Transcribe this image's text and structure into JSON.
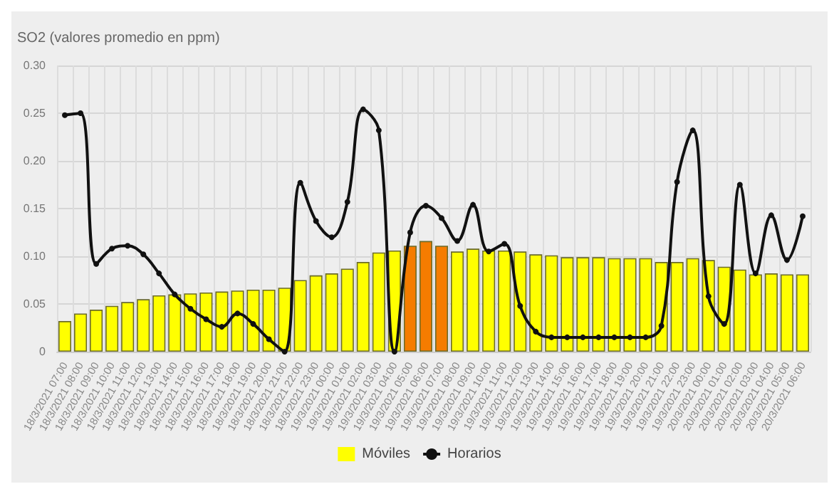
{
  "chart_data": {
    "type": "bar",
    "ylabel": "SO2 (valores promedio en ppm)",
    "categories": [
      "18/3/2021 07:00",
      "18/3/2021 08:00",
      "18/3/2021 09:00",
      "18/3/2021 10:00",
      "18/3/2021 11:00",
      "18/3/2021 12:00",
      "18/3/2021 13:00",
      "18/3/2021 14:00",
      "18/3/2021 15:00",
      "18/3/2021 16:00",
      "18/3/2021 17:00",
      "18/3/2021 18:00",
      "18/3/2021 19:00",
      "18/3/2021 20:00",
      "18/3/2021 21:00",
      "18/3/2021 22:00",
      "18/3/2021 23:00",
      "19/3/2021 00:00",
      "19/3/2021 01:00",
      "19/3/2021 02:00",
      "19/3/2021 03:00",
      "19/3/2021 04:00",
      "19/3/2021 05:00",
      "19/3/2021 06:00",
      "19/3/2021 07:00",
      "19/3/2021 08:00",
      "19/3/2021 09:00",
      "19/3/2021 10:00",
      "19/3/2021 11:00",
      "19/3/2021 12:00",
      "19/3/2021 13:00",
      "19/3/2021 14:00",
      "19/3/2021 15:00",
      "19/3/2021 16:00",
      "19/3/2021 17:00",
      "19/3/2021 18:00",
      "19/3/2021 19:00",
      "19/3/2021 20:00",
      "19/3/2021 21:00",
      "19/3/2021 22:00",
      "19/3/2021 23:00",
      "20/3/2021 00:00",
      "20/3/2021 01:00",
      "20/3/2021 02:00",
      "20/3/2021 03:00",
      "20/3/2021 04:00",
      "20/3/2021 05:00",
      "20/3/2021 06:00"
    ],
    "series": [
      {
        "name": "Móviles",
        "colors": [
          "#ffff00",
          "#ffff00",
          "#ffff00",
          "#ffff00",
          "#ffff00",
          "#ffff00",
          "#ffff00",
          "#ffff00",
          "#ffff00",
          "#ffff00",
          "#ffff00",
          "#ffff00",
          "#ffff00",
          "#ffff00",
          "#ffff00",
          "#ffff00",
          "#ffff00",
          "#ffff00",
          "#ffff00",
          "#ffff00",
          "#ffff00",
          "#ffff00",
          "#f57c00",
          "#f57c00",
          "#f57c00",
          "#ffff00",
          "#ffff00",
          "#ffff00",
          "#ffff00",
          "#ffff00",
          "#ffff00",
          "#ffff00",
          "#ffff00",
          "#ffff00",
          "#ffff00",
          "#ffff00",
          "#ffff00",
          "#ffff00",
          "#ffff00",
          "#ffff00",
          "#ffff00",
          "#ffff00",
          "#ffff00",
          "#ffff00",
          "#ffff00",
          "#ffff00",
          "#ffff00",
          "#ffff00"
        ],
        "values": [
          0.032,
          0.04,
          0.044,
          0.048,
          0.052,
          0.055,
          0.059,
          0.06,
          0.061,
          0.062,
          0.063,
          0.064,
          0.065,
          0.065,
          0.067,
          0.075,
          0.08,
          0.082,
          0.087,
          0.094,
          0.104,
          0.106,
          0.111,
          0.116,
          0.111,
          0.105,
          0.108,
          0.106,
          0.106,
          0.105,
          0.102,
          0.101,
          0.099,
          0.099,
          0.099,
          0.098,
          0.098,
          0.098,
          0.094,
          0.094,
          0.098,
          0.096,
          0.089,
          0.086,
          0.081,
          0.082,
          0.081,
          0.081
        ]
      },
      {
        "name": "Horarios",
        "type": "line",
        "color": "#111111",
        "values": [
          0.248,
          0.25,
          0.092,
          0.108,
          0.111,
          0.102,
          0.082,
          0.06,
          0.045,
          0.034,
          0.026,
          0.04,
          0.029,
          0.013,
          0.0,
          0.177,
          0.137,
          0.12,
          0.157,
          0.254,
          0.232,
          0.0,
          0.125,
          0.153,
          0.14,
          0.116,
          0.154,
          0.105,
          0.113,
          0.048,
          0.021,
          0.015,
          0.015,
          0.015,
          0.015,
          0.015,
          0.015,
          0.015,
          0.027,
          0.178,
          0.232,
          0.058,
          0.029,
          0.175,
          0.082,
          0.143,
          0.096,
          0.142
        ]
      }
    ],
    "ylim": [
      0,
      0.3
    ],
    "yticks": [
      0,
      0.05,
      {
        "value": 0.1,
        "label": "0.10"
      },
      0.15,
      {
        "value": 0.2,
        "label": "0.20"
      },
      0.25,
      {
        "value": 0.3,
        "label": "0.30"
      }
    ],
    "grid": true,
    "legend": "bottom",
    "marker": "circle",
    "line_style": "solid"
  }
}
